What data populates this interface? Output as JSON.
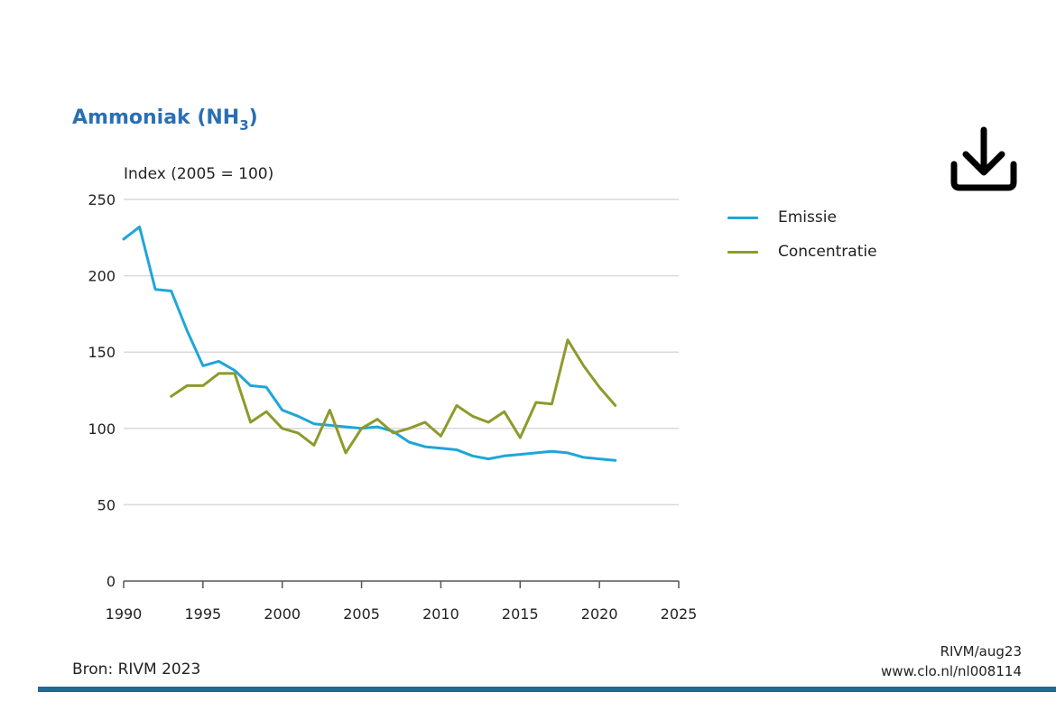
{
  "chart_data": {
    "type": "line",
    "title_main": "Ammoniak (NH",
    "title_sub": "3",
    "title_end": ")",
    "ylabel": "Index (2005 = 100)",
    "xlabel": "",
    "xlim": [
      1990,
      2025
    ],
    "ylim": [
      0,
      250
    ],
    "xticks": [
      1990,
      1995,
      2000,
      2005,
      2010,
      2015,
      2020,
      2025
    ],
    "yticks": [
      0,
      50,
      100,
      150,
      200,
      250
    ],
    "grid": true,
    "legend_position": "right",
    "series": [
      {
        "name": "Emissie",
        "color": "#1ea6d8",
        "x": [
          1990,
          1991,
          1992,
          1993,
          1994,
          1995,
          1996,
          1997,
          1998,
          1999,
          2000,
          2001,
          2002,
          2003,
          2004,
          2005,
          2006,
          2007,
          2008,
          2009,
          2010,
          2011,
          2012,
          2013,
          2014,
          2015,
          2016,
          2017,
          2018,
          2019,
          2020,
          2021
        ],
        "values": [
          224,
          232,
          191,
          190,
          164,
          141,
          144,
          138,
          128,
          127,
          112,
          108,
          103,
          102,
          101,
          100,
          101,
          98,
          91,
          88,
          87,
          86,
          82,
          80,
          82,
          83,
          84,
          85,
          84,
          81,
          80,
          79
        ]
      },
      {
        "name": "Concentratie",
        "color": "#8e9a2b",
        "x": [
          1993,
          1994,
          1995,
          1996,
          1997,
          1998,
          1999,
          2000,
          2001,
          2002,
          2003,
          2004,
          2005,
          2006,
          2007,
          2008,
          2009,
          2010,
          2011,
          2012,
          2013,
          2014,
          2015,
          2016,
          2017,
          2018,
          2019,
          2020,
          2021
        ],
        "values": [
          121,
          128,
          128,
          136,
          136,
          104,
          111,
          100,
          97,
          89,
          112,
          84,
          100,
          106,
          97,
          100,
          104,
          95,
          115,
          108,
          104,
          111,
          94,
          117,
          116,
          158,
          141,
          127,
          115
        ]
      }
    ]
  },
  "source": "Bron: RIVM 2023",
  "credit_line1": "RIVM/aug23",
  "credit_line2": "www.clo.nl/nl008114",
  "download_icon": "download-icon",
  "colors": {
    "title": "#2a6fb5",
    "grid": "#d9d9d9",
    "axis": "#555555",
    "rule": "#1f6a93"
  }
}
